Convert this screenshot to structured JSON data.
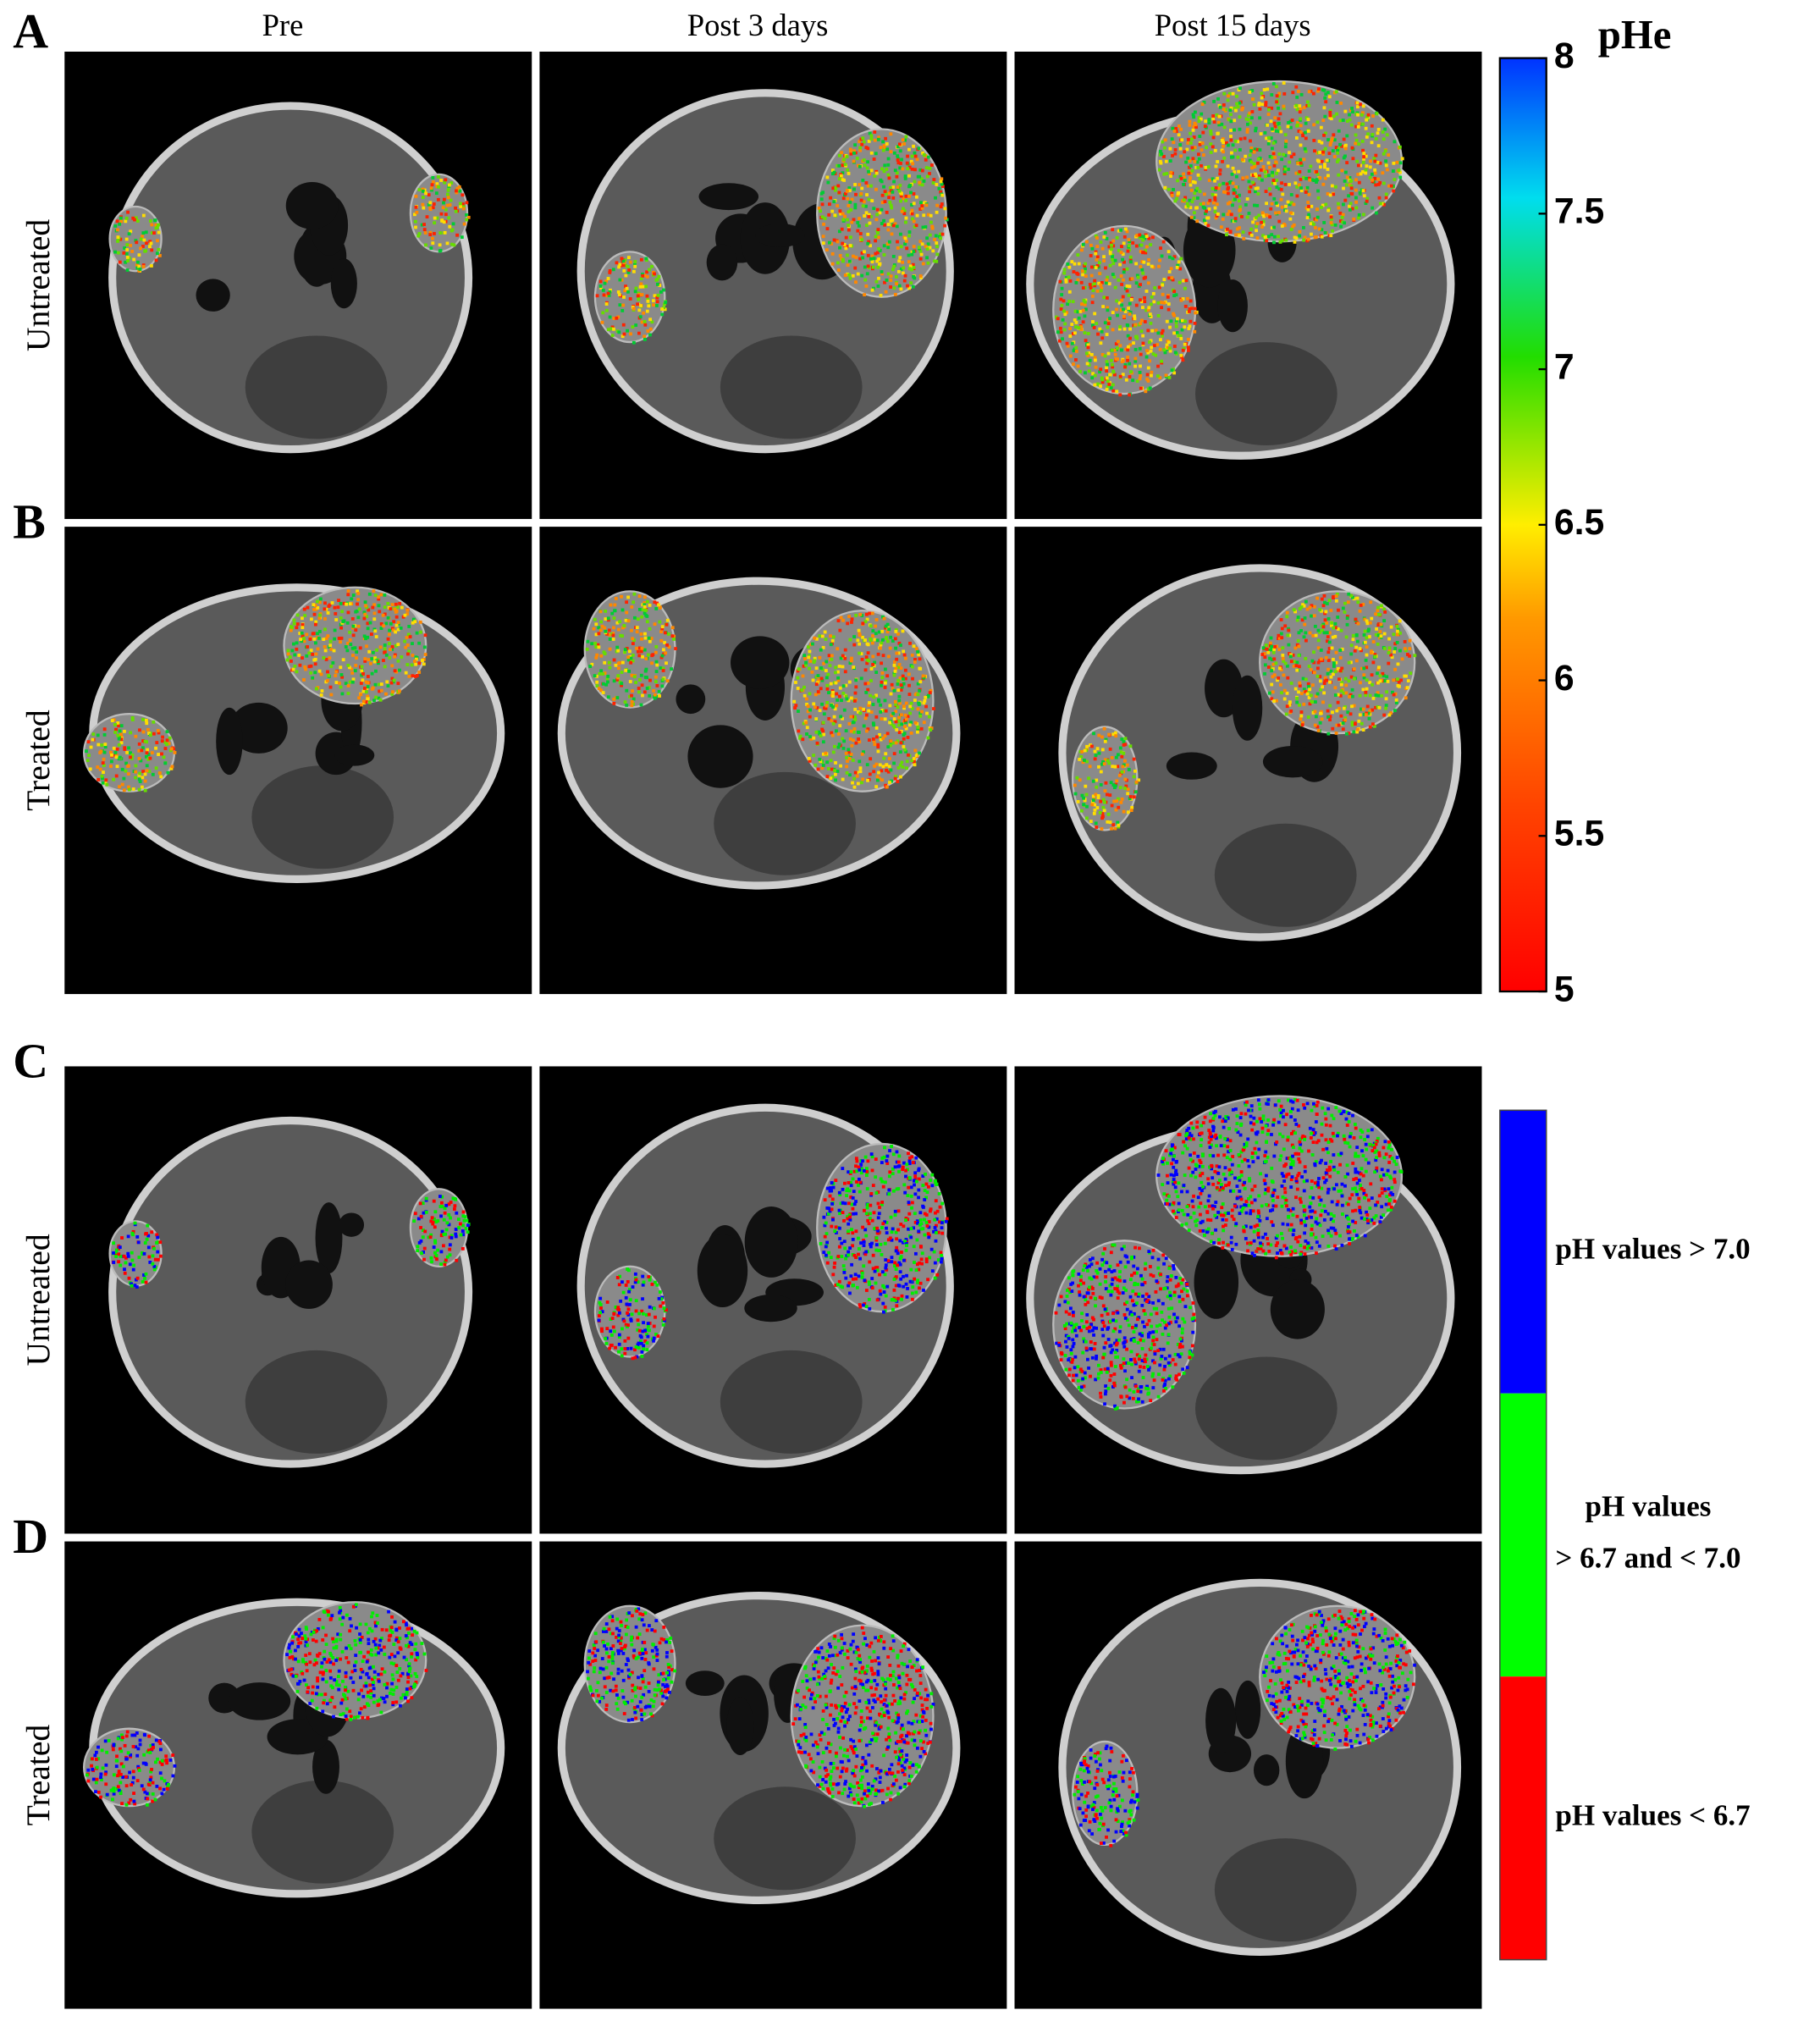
{
  "column_headers": [
    "Pre",
    "Post 3 days",
    "Post 15 days"
  ],
  "panels": [
    {
      "letter": "A",
      "row_label": "Untreated"
    },
    {
      "letter": "B",
      "row_label": "Treated"
    },
    {
      "letter": "C",
      "row_label": "Untreated"
    },
    {
      "letter": "D",
      "row_label": "Treated"
    }
  ],
  "colorbar": {
    "title": "pHe",
    "range": [
      5,
      8
    ],
    "ticks": [
      5,
      5.5,
      6,
      6.5,
      7,
      7.5,
      8
    ]
  },
  "legend": {
    "items": [
      {
        "color": "#0000ff",
        "lines": [
          "pH values > 7.0"
        ]
      },
      {
        "color": "#00ff00",
        "lines": [
          "pH values",
          "> 6.7 and < 7.0"
        ]
      },
      {
        "color": "#ff0000",
        "lines": [
          "pH values < 6.7"
        ]
      }
    ]
  }
}
